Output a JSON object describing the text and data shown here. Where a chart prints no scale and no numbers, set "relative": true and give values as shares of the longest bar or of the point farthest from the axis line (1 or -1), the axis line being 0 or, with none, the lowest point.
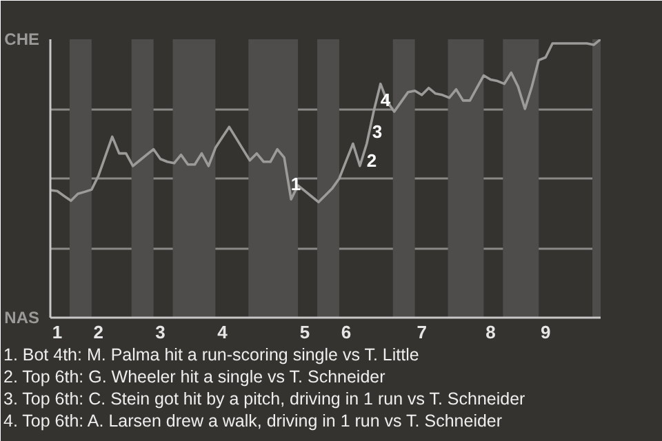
{
  "chart_data": {
    "type": "line",
    "relative": true,
    "categories": [
      null,
      "1",
      null,
      null,
      null,
      null,
      null,
      "2",
      null,
      null,
      null,
      null,
      null,
      null,
      null,
      null,
      "3",
      null,
      null,
      null,
      null,
      null,
      null,
      null,
      null,
      "4",
      null,
      null,
      null,
      null,
      null,
      null,
      null,
      null,
      null,
      null,
      null,
      "5",
      null,
      null,
      null,
      null,
      null,
      "6",
      null,
      null,
      null,
      null,
      null,
      null,
      null,
      null,
      null,
      null,
      "7",
      null,
      null,
      null,
      null,
      null,
      null,
      null,
      null,
      null,
      "8",
      null,
      null,
      null,
      null,
      null,
      null,
      null,
      "9",
      null,
      null,
      null,
      null,
      null,
      null,
      null,
      null
    ],
    "series": [
      {
        "color": "#9c9b99",
        "values": [
          0.458,
          0.455,
          0.437,
          0.42,
          0.445,
          0.452,
          0.46,
          0.51,
          0.58,
          0.65,
          0.59,
          0.59,
          0.545,
          0.565,
          0.585,
          0.605,
          0.57,
          0.56,
          0.555,
          0.585,
          0.55,
          0.55,
          0.59,
          0.545,
          0.61,
          0.648,
          0.685,
          0.645,
          0.605,
          0.565,
          0.59,
          0.56,
          0.56,
          0.605,
          0.575,
          0.425,
          0.475,
          0.455,
          0.435,
          0.415,
          0.44,
          0.465,
          0.5,
          0.563,
          0.625,
          0.545,
          0.625,
          0.74,
          0.84,
          0.775,
          0.74,
          0.775,
          0.81,
          0.815,
          0.8,
          0.825,
          0.805,
          0.8,
          0.79,
          0.82,
          0.78,
          0.78,
          0.825,
          0.87,
          0.855,
          0.85,
          0.84,
          0.88,
          0.83,
          0.75,
          0.83,
          0.925,
          0.935,
          0.985,
          0.985,
          0.985,
          0.985,
          0.985,
          0.985,
          0.98,
          1
        ]
      }
    ],
    "marker": "none",
    "line_style": "solid",
    "grid": "y",
    "annotations": [
      "CHE",
      "NAS",
      "1",
      "2",
      "3",
      "4",
      "1. Bot 4th: M. Palma hit a run-scoring single vs T. Little",
      "2. Top 6th: G. Wheeler hit a single vs T. Schneider",
      "3. Top 6th: C. Stein got hit by a pitch, driving in 1 run vs T. Schneider",
      "4. Top 6th: A. Larsen drew a walk, driving in 1 run vs T. Schneider"
    ]
  }
}
